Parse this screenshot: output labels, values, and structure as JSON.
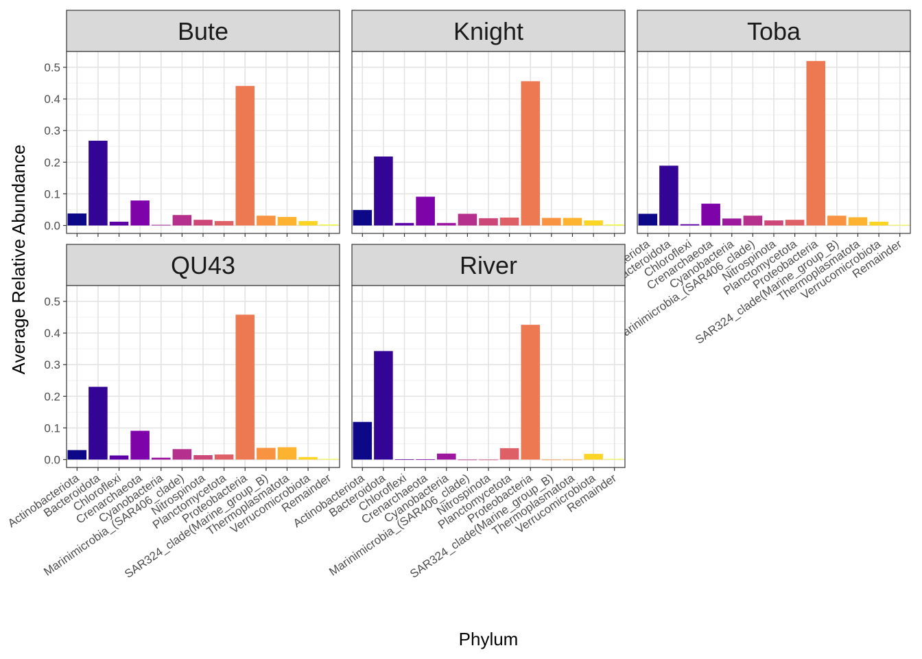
{
  "chart_data": {
    "type": "bar",
    "xlabel": "Phylum",
    "ylabel": "Average Relative Abundance",
    "ylim": [
      -0.025,
      0.55
    ],
    "y_ticks": [
      "0.0",
      "0.1",
      "0.2",
      "0.3",
      "0.4",
      "0.5"
    ],
    "grid": true,
    "legend": "none",
    "categories": [
      "Actinobacteriota",
      "Bacteroidota",
      "Chloroflexi",
      "Crenarchaeota",
      "Cyanobacteria",
      "Marinimicrobia_(SAR406_clade)",
      "Nitrospinota",
      "Planctomycetota",
      "Proteobacteria",
      "SAR324_clade(Marine_group_B)",
      "Thermoplasmatota",
      "Verrucomicrobiota",
      "Remainder"
    ],
    "colors": [
      "#0D0887",
      "#330597",
      "#5D01A6",
      "#7E03A8",
      "#9C179E",
      "#B52F8C",
      "#CC4778",
      "#DE5F65",
      "#ED7953",
      "#F89441",
      "#FDB32F",
      "#FBD424",
      "#F0F921"
    ],
    "panels": [
      {
        "name": "Bute",
        "values": [
          0.038,
          0.268,
          0.012,
          0.079,
          0.002,
          0.033,
          0.018,
          0.014,
          0.441,
          0.031,
          0.027,
          0.014,
          0.003
        ]
      },
      {
        "name": "Knight",
        "values": [
          0.049,
          0.218,
          0.008,
          0.091,
          0.008,
          0.037,
          0.023,
          0.025,
          0.456,
          0.024,
          0.024,
          0.016,
          0.003
        ]
      },
      {
        "name": "Toba",
        "values": [
          0.037,
          0.189,
          0.004,
          0.069,
          0.022,
          0.031,
          0.016,
          0.018,
          0.52,
          0.031,
          0.026,
          0.012,
          0.002
        ]
      },
      {
        "name": "QU43",
        "values": [
          0.03,
          0.23,
          0.013,
          0.091,
          0.006,
          0.033,
          0.014,
          0.016,
          0.458,
          0.037,
          0.039,
          0.008,
          0.002
        ]
      },
      {
        "name": "River",
        "values": [
          0.119,
          0.343,
          0.001,
          0.001,
          0.019,
          0.0,
          0.0,
          0.036,
          0.426,
          0.0,
          0.0,
          0.018,
          0.002
        ]
      }
    ]
  }
}
